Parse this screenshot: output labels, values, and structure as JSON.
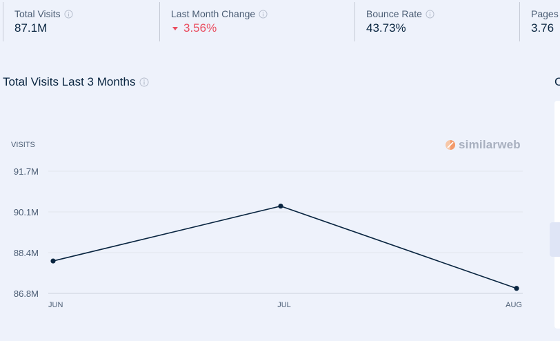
{
  "metrics": [
    {
      "label": "Total Visits",
      "value": "87.1M"
    },
    {
      "label": "Last Month Change",
      "value": "3.56%",
      "trend": "down"
    },
    {
      "label": "Bounce Rate",
      "value": "43.73%"
    },
    {
      "label": "Pages",
      "value": "3.76"
    }
  ],
  "section": {
    "title": "Total Visits Last 3 Months",
    "right_title_partial": "C"
  },
  "brand": {
    "name": "similarweb"
  },
  "colors": {
    "accent_negative": "#ea4c5f",
    "line": "#092540",
    "grid": "#e1e5ee"
  },
  "icons": {
    "info": "info-icon",
    "caret": "caret-down-icon",
    "brand": "similarweb-logo-icon"
  },
  "chart_data": {
    "type": "line",
    "ylabel": "VISITS",
    "y_ticks": [
      "86.8M",
      "88.4M",
      "90.1M",
      "91.7M"
    ],
    "ylim": [
      86.8,
      91.7
    ],
    "categories": [
      "JUN",
      "JUL",
      "AUG"
    ],
    "series": [
      {
        "values": [
          88.1,
          90.3,
          87.0
        ]
      }
    ],
    "grid": true
  }
}
